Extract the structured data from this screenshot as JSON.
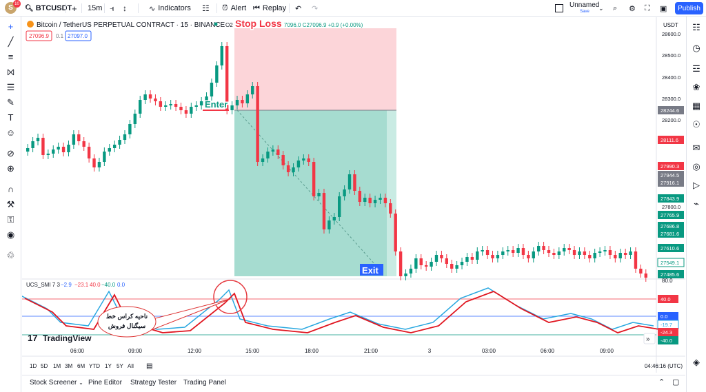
{
  "toolbar": {
    "avatar_letter": "S",
    "notif_count": "10",
    "symbol": "BTCUSDT",
    "interval": "15m",
    "indicators_label": "Indicators",
    "alert_label": "Alert",
    "replay_label": "Replay",
    "layout_name": "Unnamed",
    "layout_status": "Save",
    "publish_label": "Publish"
  },
  "legend": {
    "title": "Bitcoin / TetherUS PERPETUAL CONTRACT · 15 · BINANCE",
    "ohlc_prefix": "O2",
    "ohlc_tail": "7096.0 C27096.9 +0.9 (+0.00%)",
    "sell_price": "27096.9",
    "spread": "0.1",
    "buy_price": "27097.0"
  },
  "annotations": {
    "stop_loss": "Stop Loss",
    "enter": "Enter",
    "exit": "Exit",
    "arabic_line1": "ناحیه کراس خط",
    "arabic_line2": "سیگنال فروش"
  },
  "watermark": "TradingView",
  "indicator": {
    "name": "UCS_SMI 7 3",
    "v1": "−2.9",
    "v2": "−23.1",
    "v3": "40.0",
    "v4": "−40.0",
    "v5": "0.0"
  },
  "price_axis": {
    "currency": "USDT",
    "ticks": [
      "28600.0",
      "28500.0",
      "28400.0",
      "28300.0",
      "28200.0",
      "28000.0",
      "27900.0",
      "27800.0",
      "27700.0",
      "27600.0",
      "27500.0"
    ],
    "labels": [
      {
        "text": "28244.6",
        "color": "#787b86"
      },
      {
        "text": "28111.6",
        "color": "#f23645"
      },
      {
        "text": "27990.3",
        "color": "#f23645"
      },
      {
        "text": "27944.5",
        "color": "#787b86"
      },
      {
        "text": "27916.1",
        "color": "#787b86"
      },
      {
        "text": "27843.9",
        "color": "#089981"
      },
      {
        "text": "27765.9",
        "color": "#089981"
      },
      {
        "text": "27686.8",
        "color": "#089981"
      },
      {
        "text": "27681.6",
        "color": "#089981"
      },
      {
        "text": "27610.6",
        "color": "#089981"
      },
      {
        "text": "27549.1",
        "color": "#ffffff"
      },
      {
        "text": "27485.6",
        "color": "#089981"
      }
    ]
  },
  "indicator_axis": {
    "top": "80.0",
    "labels": [
      {
        "text": "40.0",
        "color": "#f23645"
      },
      {
        "text": "0.0",
        "color": "#2962ff"
      },
      {
        "text": "-19.7",
        "color": "#ffffff"
      },
      {
        "text": "-24.3",
        "color": "#f23645"
      },
      {
        "text": "-40.0",
        "color": "#089981"
      }
    ]
  },
  "time_axis": [
    "06:00",
    "09:00",
    "12:00",
    "15:00",
    "18:00",
    "21:00",
    "3",
    "03:00",
    "06:00",
    "09:00"
  ],
  "ranges": [
    "1D",
    "5D",
    "1M",
    "3M",
    "6M",
    "YTD",
    "1Y",
    "5Y",
    "All"
  ],
  "clock": "04:46:16 (UTC)",
  "bottom_tabs": [
    "Stock Screener",
    "Pine Editor",
    "Strategy Tester",
    "Trading Panel"
  ],
  "colors": {
    "up": "#089981",
    "down": "#f23645",
    "accent": "#2962ff",
    "stop_zone": "#fcd5d9",
    "target_zone": "#a6dcd0"
  }
}
